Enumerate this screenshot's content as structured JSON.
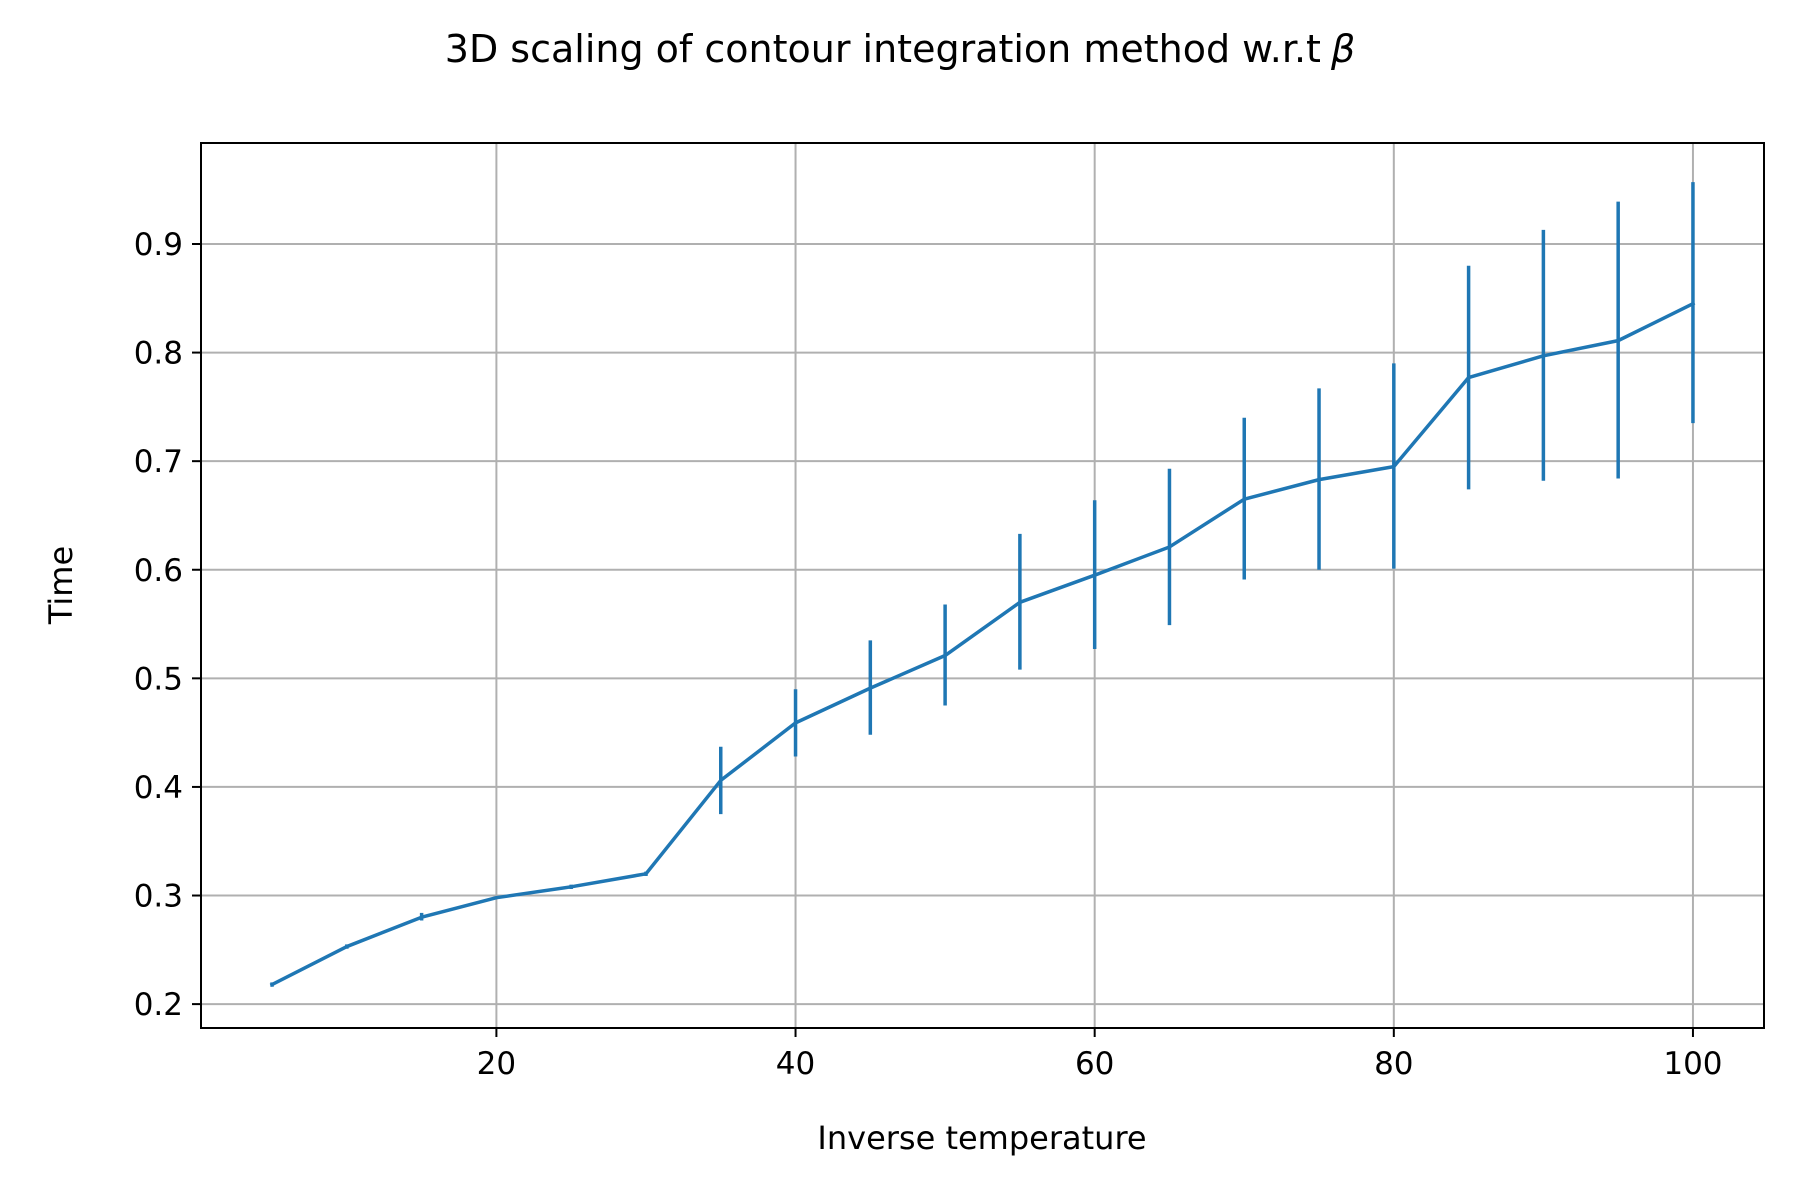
{
  "chart_data": {
    "type": "line",
    "title": "3D scaling of contour integration method w.r.t",
    "title_symbol": "β",
    "xlabel": "Inverse temperature",
    "ylabel": "Time",
    "xlim": [
      0.25,
      104.75
    ],
    "ylim": [
      0.178,
      0.993
    ],
    "xticks": [
      20,
      40,
      60,
      80,
      100
    ],
    "yticks": [
      0.2,
      0.3,
      0.4,
      0.5,
      0.6,
      0.7,
      0.8,
      0.9
    ],
    "grid": true,
    "series": [
      {
        "color": "#1f77b4",
        "x": [
          5,
          10,
          15,
          20,
          25,
          30,
          35,
          40,
          45,
          50,
          55,
          60,
          65,
          70,
          75,
          80,
          85,
          90,
          95,
          100
        ],
        "y": [
          0.218,
          0.253,
          0.28,
          0.298,
          0.308,
          0.32,
          0.406,
          0.459,
          0.491,
          0.521,
          0.57,
          0.595,
          0.621,
          0.665,
          0.683,
          0.695,
          0.777,
          0.797,
          0.811,
          0.845
        ],
        "error_low": [
          0.216,
          0.251,
          0.277,
          0.297,
          0.306,
          0.318,
          0.375,
          0.428,
          0.448,
          0.475,
          0.508,
          0.527,
          0.549,
          0.591,
          0.6,
          0.601,
          0.674,
          0.682,
          0.684,
          0.735
        ],
        "error_high": [
          0.22,
          0.255,
          0.284,
          0.299,
          0.31,
          0.322,
          0.437,
          0.49,
          0.535,
          0.568,
          0.633,
          0.664,
          0.693,
          0.74,
          0.767,
          0.79,
          0.88,
          0.913,
          0.939,
          0.957
        ]
      }
    ]
  }
}
